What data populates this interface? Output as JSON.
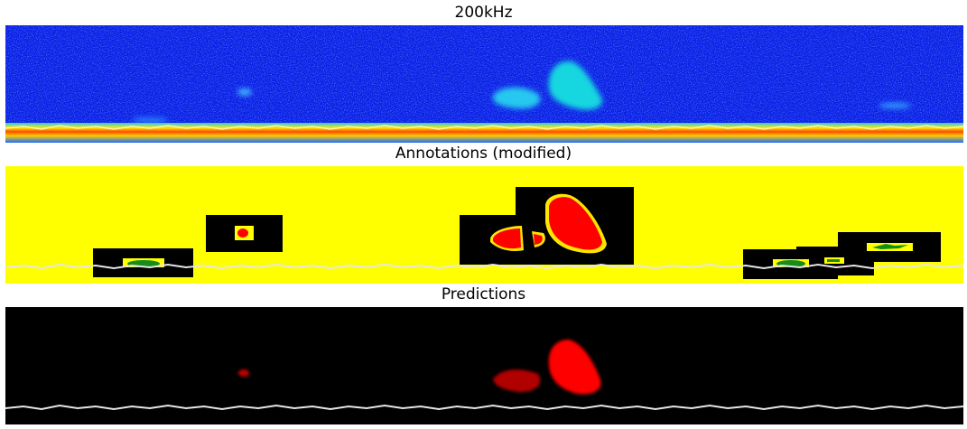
{
  "panels": [
    {
      "title": "200kHz"
    },
    {
      "title": "Annotations (modified)"
    },
    {
      "title": "Predictions"
    }
  ],
  "colors": {
    "echogram_background": "#0a1fe6",
    "echogram_noise": "#3a7dff",
    "school_cyan": "#19d7e0",
    "seabed_yellow": "#ffe600",
    "seabed_red": "#ff3b00",
    "annotation_background": "#ffff00",
    "box_black": "#000000",
    "fish_red": "#ff0000",
    "fish_green": "#168c1a",
    "seabed_line": "#e6e6e6",
    "prediction_background": "#000000"
  }
}
